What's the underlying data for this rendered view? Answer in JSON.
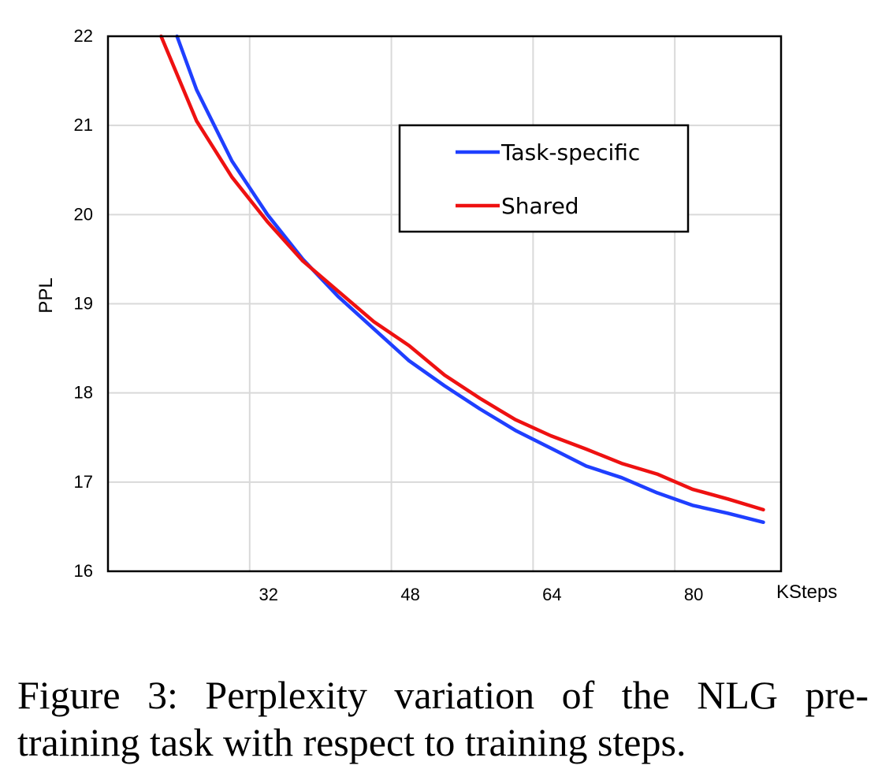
{
  "chart_data": {
    "type": "line",
    "xlabel": "KSteps",
    "ylabel": "PPL",
    "xlim": [
      16,
      92
    ],
    "ylim": [
      16,
      22
    ],
    "x_ticks": [
      32,
      48,
      64,
      80
    ],
    "y_ticks": [
      16,
      17,
      18,
      19,
      20,
      21,
      22
    ],
    "grid": true,
    "legend_position": "top-right",
    "series": [
      {
        "name": "Task-specific",
        "color": "#1f3fff",
        "x": [
          23.8,
          26,
          30,
          34,
          38,
          42,
          46,
          50,
          54,
          58,
          62,
          66,
          70,
          74,
          78,
          82,
          86,
          90
        ],
        "y": [
          22.0,
          21.4,
          20.6,
          20.0,
          19.5,
          19.08,
          18.72,
          18.36,
          18.08,
          17.82,
          17.58,
          17.38,
          17.18,
          17.05,
          16.88,
          16.74,
          16.65,
          16.55
        ]
      },
      {
        "name": "Shared",
        "color": "#ee1111",
        "x": [
          22,
          26,
          30,
          34,
          38,
          42,
          46,
          50,
          54,
          58,
          62,
          66,
          70,
          74,
          78,
          82,
          86,
          90
        ],
        "y": [
          22.0,
          21.05,
          20.42,
          19.92,
          19.48,
          19.14,
          18.8,
          18.53,
          18.2,
          17.94,
          17.7,
          17.52,
          17.37,
          17.21,
          17.09,
          16.92,
          16.81,
          16.69
        ]
      }
    ]
  },
  "caption": "Figure 3: Perplexity variation of the NLG pre-training task with respect to training steps."
}
